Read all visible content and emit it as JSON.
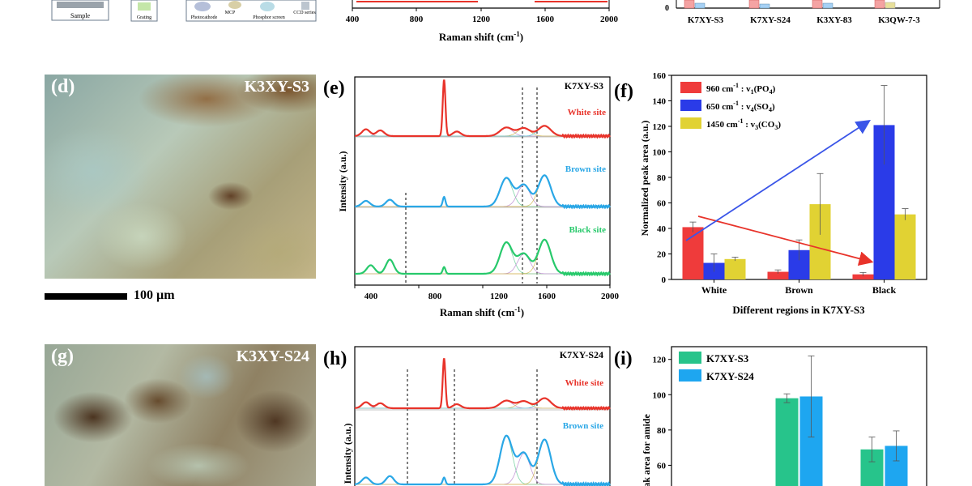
{
  "top": {
    "sample_label": "Sample",
    "grating_label": "Grating",
    "photocathode_label": "Photocathode",
    "mcp_label": "MCP",
    "phosphor_label": "Phosphor screen",
    "ccd_label": "CCD series",
    "xaxis_ticks": [
      "400",
      "800",
      "1200",
      "1600",
      "2000"
    ],
    "xlabel": "Raman shift (cm",
    "xlabel_sup": "-1",
    "xlabel_end": ")",
    "bar_categories": [
      "K7XY-S3",
      "K7XY-S24",
      "K3XY-83",
      "K3QW-7-3"
    ],
    "bar_zero": "0"
  },
  "panel_d": {
    "letter": "(d)",
    "sample": "K3XY-S3",
    "scale": "100 µm"
  },
  "panel_e": {
    "letter": "(e)",
    "sample": "K7XY-S3",
    "sites": [
      "White site",
      "Brown site",
      "Black site"
    ],
    "ylabel": "Intensity (a.u.)",
    "xticks": [
      "400",
      "800",
      "1200",
      "1600",
      "2000"
    ],
    "xlabel": "Raman shift (cm",
    "xlabel_sup": "-1",
    "xlabel_end": ")"
  },
  "panel_f": {
    "letter": "(f)",
    "ylabel": "Normalized peak area (a.u.)",
    "xlabel": "Different regions in K7XY-S3",
    "legend": [
      {
        "wn": "960 cm",
        "sup": "-1",
        "mode": " : v",
        "sub": "1",
        "grp": "(PO",
        "grpsub": "4",
        "end": ")"
      },
      {
        "wn": "650 cm",
        "sup": "-1",
        "mode": " : v",
        "sub": "4",
        "grp": "(SO",
        "grpsub": "4",
        "end": ")"
      },
      {
        "wn": "1450 cm",
        "sup": "-1",
        "mode": " : v",
        "sub": "3",
        "grp": "(CO",
        "grpsub": "3",
        "end": ")"
      }
    ]
  },
  "panel_g": {
    "letter": "(g)",
    "sample": "K3XY-S24"
  },
  "panel_h": {
    "letter": "(h)",
    "sample": "K7XY-S24",
    "sites": [
      "White site",
      "Brown site"
    ],
    "ylabel": "Intensity (a.u.)"
  },
  "panel_i": {
    "letter": "(i)",
    "ylabel": "ed peak area for amide",
    "legend": [
      "K7XY-S3",
      "K7XY-S24"
    ]
  },
  "chart_data": [
    {
      "type": "bar",
      "title": "(f)",
      "categories": [
        "White",
        "Brown",
        "Black"
      ],
      "series": [
        {
          "name": "960 cm-1 : v1(PO4)",
          "color": "#ef3b3b",
          "values": [
            41,
            6,
            4
          ],
          "errors": [
            4,
            1.5,
            1.5
          ]
        },
        {
          "name": "650 cm-1 : v4(SO4)",
          "color": "#2a3be8",
          "values": [
            13,
            23,
            121
          ],
          "errors": [
            7,
            8,
            31
          ]
        },
        {
          "name": "1450 cm-1 : v3(CO3)",
          "color": "#e1d233",
          "values": [
            16,
            59,
            51
          ],
          "errors": [
            1.5,
            24,
            4.5
          ]
        }
      ],
      "xlabel": "Different regions in K7XY-S3",
      "ylabel": "Normalized peak area (a.u.)",
      "ylim": [
        0,
        160
      ],
      "yticks": [
        "0",
        "20",
        "40",
        "60",
        "80",
        "100",
        "120",
        "140",
        "160"
      ]
    },
    {
      "type": "bar",
      "title": "(i)",
      "categories": [
        "",
        "",
        ""
      ],
      "series": [
        {
          "name": "K7XY-S3",
          "color": "#27c48b",
          "values": [
            null,
            98,
            69
          ],
          "errors": [
            0,
            2.5,
            7
          ]
        },
        {
          "name": "K7XY-S24",
          "color": "#1ea6f0",
          "values": [
            null,
            99,
            71
          ],
          "errors": [
            0,
            23,
            8.5
          ]
        }
      ],
      "ylabel": "ed peak area for amide",
      "ylim": [
        40,
        130
      ],
      "yticks": [
        "60",
        "80",
        "100",
        "120"
      ]
    },
    {
      "type": "line",
      "title": "(e) K7XY-S3",
      "xlabel": "Raman shift (cm-1)",
      "ylabel": "Intensity (a.u.)",
      "xlim": [
        400,
        2000
      ],
      "series": [
        {
          "name": "White site",
          "color": "#e8332a",
          "peaks": [
            [
              470,
              0.12
            ],
            [
              560,
              0.1
            ],
            [
              960,
              1.0
            ],
            [
              1040,
              0.08
            ],
            [
              1350,
              0.15
            ],
            [
              1460,
              0.14
            ],
            [
              1590,
              0.18
            ]
          ]
        },
        {
          "name": "Brown site",
          "color": "#2aa7e6",
          "peaks": [
            [
              470,
              0.1
            ],
            [
              620,
              0.12
            ],
            [
              960,
              0.17
            ],
            [
              1350,
              0.5
            ],
            [
              1460,
              0.38
            ],
            [
              1590,
              0.55
            ]
          ]
        },
        {
          "name": "Black site",
          "color": "#27c96b",
          "peaks": [
            [
              500,
              0.15
            ],
            [
              620,
              0.25
            ],
            [
              960,
              0.12
            ],
            [
              1350,
              0.55
            ],
            [
              1460,
              0.35
            ],
            [
              1590,
              0.6
            ]
          ]
        }
      ]
    },
    {
      "type": "line",
      "title": "(h) K7XY-S24",
      "ylabel": "Intensity (a.u.)",
      "xlim": [
        400,
        2000
      ],
      "series": [
        {
          "name": "White site",
          "color": "#e8332a",
          "peaks": [
            [
              470,
              0.12
            ],
            [
              560,
              0.1
            ],
            [
              960,
              1.0
            ],
            [
              1040,
              0.08
            ],
            [
              1350,
              0.15
            ],
            [
              1460,
              0.14
            ],
            [
              1590,
              0.2
            ]
          ]
        },
        {
          "name": "Brown site",
          "color": "#2aa7e6",
          "peaks": [
            [
              470,
              0.1
            ],
            [
              620,
              0.12
            ],
            [
              960,
              0.1
            ],
            [
              1350,
              0.7
            ],
            [
              1460,
              0.45
            ],
            [
              1590,
              0.65
            ]
          ]
        }
      ]
    }
  ]
}
